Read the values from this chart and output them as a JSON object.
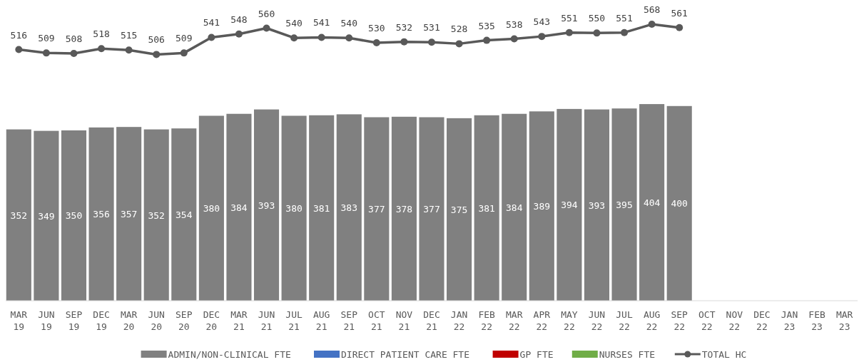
{
  "chart_data": {
    "type": "bar",
    "categories": [
      "MAR 19",
      "JUN 19",
      "SEP 19",
      "DEC 19",
      "MAR 20",
      "JUN 20",
      "SEP 20",
      "DEC 20",
      "MAR 21",
      "JUN 21",
      "JUL 21",
      "AUG 21",
      "SEP 21",
      "OCT 21",
      "NOV 21",
      "DEC 21",
      "JAN 22",
      "FEB 22",
      "MAR 22",
      "APR 22",
      "MAY 22",
      "JUN 22",
      "JUL 22",
      "AUG 22",
      "SEP 22",
      "OCT 22",
      "NOV 22",
      "DEC 22",
      "JAN 23",
      "FEB 23",
      "MAR 23"
    ],
    "series": [
      {
        "name": "ADMIN/NON-CLINICAL FTE",
        "color": "#808080",
        "values": [
          352,
          349,
          350,
          356,
          357,
          352,
          354,
          380,
          384,
          393,
          380,
          381,
          383,
          377,
          378,
          377,
          375,
          381,
          384,
          389,
          394,
          393,
          395,
          404,
          400,
          null,
          null,
          null,
          null,
          null,
          null
        ]
      },
      {
        "name": "DIRECT PATIENT CARE FTE",
        "color": "#4472c4",
        "values": [
          null,
          null,
          null,
          null,
          null,
          null,
          null,
          null,
          null,
          null,
          null,
          null,
          null,
          null,
          null,
          null,
          null,
          null,
          null,
          null,
          null,
          null,
          null,
          null,
          null,
          null,
          null,
          null,
          null,
          null,
          null
        ]
      },
      {
        "name": "GP FTE",
        "color": "#c00000",
        "values": [
          null,
          null,
          null,
          null,
          null,
          null,
          null,
          null,
          null,
          null,
          null,
          null,
          null,
          null,
          null,
          null,
          null,
          null,
          null,
          null,
          null,
          null,
          null,
          null,
          null,
          null,
          null,
          null,
          null,
          null,
          null
        ]
      },
      {
        "name": "NURSES FTE",
        "color": "#70ad47",
        "values": [
          null,
          null,
          null,
          null,
          null,
          null,
          null,
          null,
          null,
          null,
          null,
          null,
          null,
          null,
          null,
          null,
          null,
          null,
          null,
          null,
          null,
          null,
          null,
          null,
          null,
          null,
          null,
          null,
          null,
          null,
          null
        ]
      },
      {
        "name": "TOTAL HC",
        "color": "#595959",
        "type": "line",
        "values": [
          516,
          509,
          508,
          518,
          515,
          506,
          509,
          541,
          548,
          560,
          540,
          541,
          540,
          530,
          532,
          531,
          528,
          535,
          538,
          543,
          551,
          550,
          551,
          568,
          561,
          null,
          null,
          null,
          null,
          null,
          null
        ]
      }
    ],
    "tick_labels": "x",
    "data_labels": true,
    "legend": "bottom",
    "marker": "circle",
    "line_style": "solid"
  }
}
